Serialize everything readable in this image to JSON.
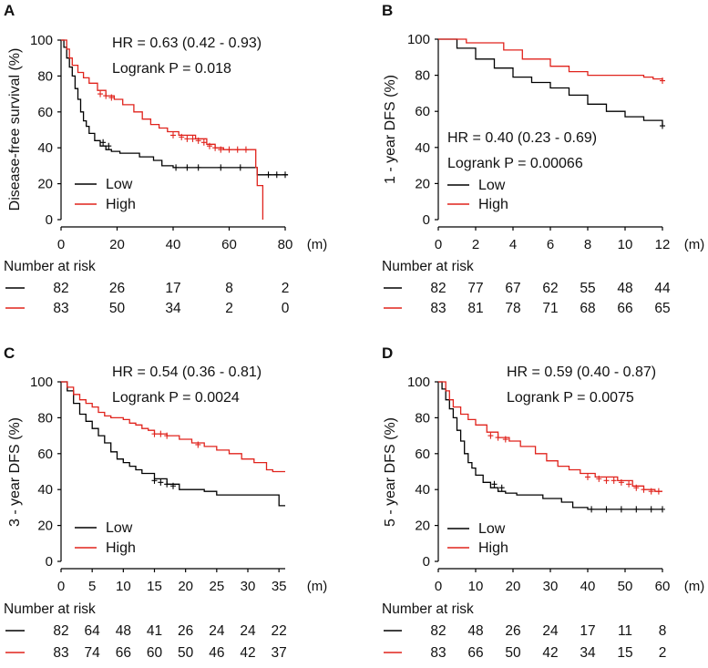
{
  "risk_title": "Number at risk",
  "unit_label": "(m)",
  "colors": {
    "low": "#000000",
    "high": "#e0231c"
  },
  "chart_data": [
    {
      "panel": "A",
      "type": "line",
      "ylabel": "Disease-free survival (%)",
      "xlabel": "(m)",
      "xlim": [
        0,
        80
      ],
      "ylim": [
        0,
        100
      ],
      "xticks": [
        0,
        20,
        40,
        60,
        80
      ],
      "yticks": [
        0,
        20,
        40,
        60,
        80,
        100
      ],
      "hr_text": "HR = 0.63 (0.42 - 0.93)",
      "p_text": "Logrank P = 0.018",
      "legend": [
        "Low",
        "High"
      ],
      "series": [
        {
          "name": "Low",
          "color": "#000000",
          "points": [
            [
              0,
              100
            ],
            [
              1,
              96
            ],
            [
              2,
              90
            ],
            [
              3,
              85
            ],
            [
              4,
              80
            ],
            [
              5,
              73
            ],
            [
              6,
              67
            ],
            [
              7,
              60
            ],
            [
              8,
              55
            ],
            [
              9,
              52
            ],
            [
              10,
              48
            ],
            [
              12,
              44
            ],
            [
              14,
              41
            ],
            [
              16,
              39
            ],
            [
              18,
              38
            ],
            [
              21,
              37
            ],
            [
              28,
              35
            ],
            [
              33,
              33
            ],
            [
              36,
              30
            ],
            [
              40,
              29
            ],
            [
              55,
              29
            ],
            [
              69,
              29
            ],
            [
              70,
              25
            ],
            [
              81,
              25
            ]
          ],
          "censors": [
            [
              15,
              43
            ],
            [
              17,
              41
            ],
            [
              41,
              29
            ],
            [
              45,
              29
            ],
            [
              49,
              29
            ],
            [
              57,
              29
            ],
            [
              64,
              29
            ],
            [
              74,
              25
            ],
            [
              77,
              25
            ],
            [
              80,
              25
            ]
          ]
        },
        {
          "name": "High",
          "color": "#e0231c",
          "points": [
            [
              0,
              100
            ],
            [
              2,
              95
            ],
            [
              3,
              90
            ],
            [
              4,
              86
            ],
            [
              6,
              82
            ],
            [
              8,
              79
            ],
            [
              10,
              76
            ],
            [
              13,
              72
            ],
            [
              16,
              69
            ],
            [
              19,
              67
            ],
            [
              22,
              64
            ],
            [
              26,
              60
            ],
            [
              29,
              56
            ],
            [
              32,
              53
            ],
            [
              35,
              51
            ],
            [
              38,
              49
            ],
            [
              42,
              47
            ],
            [
              48,
              45
            ],
            [
              52,
              42
            ],
            [
              55,
              40
            ],
            [
              58,
              39
            ],
            [
              63,
              39
            ],
            [
              69,
              39
            ],
            [
              69.5,
              29
            ],
            [
              70,
              19
            ],
            [
              72,
              19
            ],
            [
              72,
              0
            ]
          ],
          "censors": [
            [
              14,
              70
            ],
            [
              16,
              69
            ],
            [
              18,
              68
            ],
            [
              40,
              47
            ],
            [
              43,
              46
            ],
            [
              45,
              45
            ],
            [
              47,
              45
            ],
            [
              49,
              44
            ],
            [
              51,
              43
            ],
            [
              53,
              41
            ],
            [
              55,
              40
            ],
            [
              57,
              39
            ],
            [
              60,
              39
            ],
            [
              63,
              39
            ],
            [
              66,
              39
            ]
          ]
        }
      ],
      "risk_x": [
        0,
        20,
        40,
        60,
        80
      ],
      "risk": [
        {
          "name": "Low",
          "values": [
            "82",
            "26",
            "17",
            "8",
            "2"
          ]
        },
        {
          "name": "High",
          "values": [
            "83",
            "50",
            "34",
            "2",
            "0"
          ]
        }
      ]
    },
    {
      "panel": "B",
      "type": "line",
      "ylabel": "1 - year DFS (%)",
      "xlabel": "(m)",
      "xlim": [
        0,
        12
      ],
      "ylim": [
        0,
        100
      ],
      "xticks": [
        0,
        2,
        4,
        6,
        8,
        10,
        12
      ],
      "yticks": [
        0,
        20,
        40,
        60,
        80,
        100
      ],
      "hr_text": "HR = 0.40 (0.23 - 0.69)",
      "p_text": "Logrank P = 0.00066",
      "legend": [
        "Low",
        "High"
      ],
      "series": [
        {
          "name": "Low",
          "color": "#000000",
          "points": [
            [
              0,
              100
            ],
            [
              1,
              95
            ],
            [
              2,
              89
            ],
            [
              3,
              84
            ],
            [
              4,
              79
            ],
            [
              5,
              76
            ],
            [
              6,
              73
            ],
            [
              7,
              69
            ],
            [
              8,
              64
            ],
            [
              9,
              60
            ],
            [
              10,
              57
            ],
            [
              11,
              55
            ],
            [
              12,
              52
            ]
          ],
          "censors": [
            [
              12,
              52
            ]
          ]
        },
        {
          "name": "High",
          "color": "#e0231c",
          "points": [
            [
              0,
              100
            ],
            [
              1.5,
              98
            ],
            [
              3.5,
              94
            ],
            [
              4.5,
              89
            ],
            [
              6,
              85
            ],
            [
              7,
              82
            ],
            [
              8,
              80
            ],
            [
              11,
              79
            ],
            [
              11.5,
              78
            ],
            [
              12,
              77
            ]
          ],
          "censors": [
            [
              12,
              77
            ]
          ]
        }
      ],
      "risk_x": [
        0,
        2,
        4,
        6,
        8,
        10,
        12
      ],
      "risk": [
        {
          "name": "Low",
          "values": [
            "82",
            "77",
            "67",
            "62",
            "55",
            "48",
            "44"
          ]
        },
        {
          "name": "High",
          "values": [
            "83",
            "81",
            "78",
            "71",
            "68",
            "66",
            "65"
          ]
        }
      ]
    },
    {
      "panel": "C",
      "type": "line",
      "ylabel": "3 - year DFS (%)",
      "xlabel": "(m)",
      "xlim": [
        0,
        36
      ],
      "ylim": [
        0,
        100
      ],
      "xticks": [
        0,
        5,
        10,
        15,
        20,
        25,
        30,
        35
      ],
      "yticks": [
        0,
        20,
        40,
        60,
        80,
        100
      ],
      "hr_text": "HR = 0.54 (0.36 - 0.81)",
      "p_text": "Logrank P = 0.0024",
      "legend": [
        "Low",
        "High"
      ],
      "series": [
        {
          "name": "Low",
          "color": "#000000",
          "points": [
            [
              0,
              100
            ],
            [
              1,
              95
            ],
            [
              2,
              88
            ],
            [
              3,
              82
            ],
            [
              4,
              78
            ],
            [
              5,
              74
            ],
            [
              6,
              70
            ],
            [
              7,
              66
            ],
            [
              8,
              61
            ],
            [
              9,
              57
            ],
            [
              10,
              55
            ],
            [
              11,
              53
            ],
            [
              12,
              51
            ],
            [
              13,
              49
            ],
            [
              15,
              46
            ],
            [
              17,
              43
            ],
            [
              19,
              40
            ],
            [
              23,
              39
            ],
            [
              25,
              37
            ],
            [
              34,
              37
            ],
            [
              35,
              31
            ],
            [
              36,
              31
            ]
          ],
          "censors": [
            [
              15,
              45
            ],
            [
              16,
              44
            ],
            [
              17,
              43
            ],
            [
              18,
              42
            ]
          ]
        },
        {
          "name": "High",
          "color": "#e0231c",
          "points": [
            [
              0,
              100
            ],
            [
              1,
              97
            ],
            [
              2,
              93
            ],
            [
              3,
              90
            ],
            [
              4,
              88
            ],
            [
              5,
              86
            ],
            [
              6,
              83
            ],
            [
              7,
              81
            ],
            [
              8,
              80
            ],
            [
              10,
              79
            ],
            [
              11,
              77
            ],
            [
              12,
              76
            ],
            [
              13,
              74
            ],
            [
              14,
              73
            ],
            [
              15,
              71
            ],
            [
              17,
              70
            ],
            [
              19,
              68
            ],
            [
              21,
              66
            ],
            [
              23,
              64
            ],
            [
              25,
              62
            ],
            [
              27,
              60
            ],
            [
              29,
              57
            ],
            [
              31,
              55
            ],
            [
              33,
              51
            ],
            [
              34,
              50
            ],
            [
              36,
              50
            ]
          ],
          "censors": [
            [
              15,
              71
            ],
            [
              16,
              71
            ],
            [
              17,
              70
            ],
            [
              22,
              65
            ]
          ]
        }
      ],
      "risk_x": [
        0,
        5,
        10,
        15,
        20,
        25,
        30,
        35
      ],
      "risk": [
        {
          "name": "Low",
          "values": [
            "82",
            "64",
            "48",
            "41",
            "26",
            "24",
            "24",
            "22"
          ]
        },
        {
          "name": "High",
          "values": [
            "83",
            "74",
            "66",
            "60",
            "50",
            "46",
            "42",
            "37"
          ]
        }
      ]
    },
    {
      "panel": "D",
      "type": "line",
      "ylabel": "5 - year DFS (%)",
      "xlabel": "(m)",
      "xlim": [
        0,
        60
      ],
      "ylim": [
        0,
        100
      ],
      "xticks": [
        0,
        10,
        20,
        30,
        40,
        50,
        60
      ],
      "yticks": [
        0,
        20,
        40,
        60,
        80,
        100
      ],
      "hr_text": "HR = 0.59 (0.40 - 0.87)",
      "p_text": "Logrank P = 0.0075",
      "legend": [
        "Low",
        "High"
      ],
      "series": [
        {
          "name": "Low",
          "color": "#000000",
          "points": [
            [
              0,
              100
            ],
            [
              1,
              96
            ],
            [
              2,
              90
            ],
            [
              3,
              85
            ],
            [
              4,
              80
            ],
            [
              5,
              73
            ],
            [
              6,
              67
            ],
            [
              7,
              60
            ],
            [
              8,
              55
            ],
            [
              9,
              52
            ],
            [
              10,
              48
            ],
            [
              12,
              44
            ],
            [
              14,
              41
            ],
            [
              16,
              39
            ],
            [
              18,
              38
            ],
            [
              21,
              37
            ],
            [
              28,
              35
            ],
            [
              33,
              33
            ],
            [
              36,
              30
            ],
            [
              40,
              29
            ],
            [
              60,
              29
            ]
          ],
          "censors": [
            [
              15,
              43
            ],
            [
              17,
              41
            ],
            [
              41,
              29
            ],
            [
              45,
              29
            ],
            [
              49,
              29
            ],
            [
              53,
              29
            ],
            [
              57,
              29
            ],
            [
              60,
              29
            ]
          ]
        },
        {
          "name": "High",
          "color": "#e0231c",
          "points": [
            [
              0,
              100
            ],
            [
              2,
              95
            ],
            [
              3,
              90
            ],
            [
              4,
              86
            ],
            [
              6,
              82
            ],
            [
              8,
              79
            ],
            [
              10,
              76
            ],
            [
              13,
              72
            ],
            [
              16,
              69
            ],
            [
              19,
              67
            ],
            [
              22,
              64
            ],
            [
              26,
              60
            ],
            [
              29,
              56
            ],
            [
              32,
              53
            ],
            [
              35,
              51
            ],
            [
              38,
              49
            ],
            [
              42,
              47
            ],
            [
              48,
              45
            ],
            [
              52,
              42
            ],
            [
              55,
              40
            ],
            [
              58,
              39
            ],
            [
              60,
              39
            ]
          ],
          "censors": [
            [
              14,
              70
            ],
            [
              16,
              69
            ],
            [
              18,
              68
            ],
            [
              40,
              47
            ],
            [
              43,
              46
            ],
            [
              45,
              45
            ],
            [
              47,
              45
            ],
            [
              49,
              44
            ],
            [
              51,
              43
            ],
            [
              53,
              41
            ],
            [
              55,
              40
            ],
            [
              57,
              39
            ],
            [
              59,
              39
            ]
          ]
        }
      ],
      "risk_x": [
        0,
        10,
        20,
        30,
        40,
        50,
        60
      ],
      "risk": [
        {
          "name": "Low",
          "values": [
            "82",
            "48",
            "26",
            "24",
            "17",
            "11",
            "8"
          ]
        },
        {
          "name": "High",
          "values": [
            "83",
            "66",
            "50",
            "42",
            "34",
            "15",
            "2"
          ]
        }
      ]
    }
  ]
}
